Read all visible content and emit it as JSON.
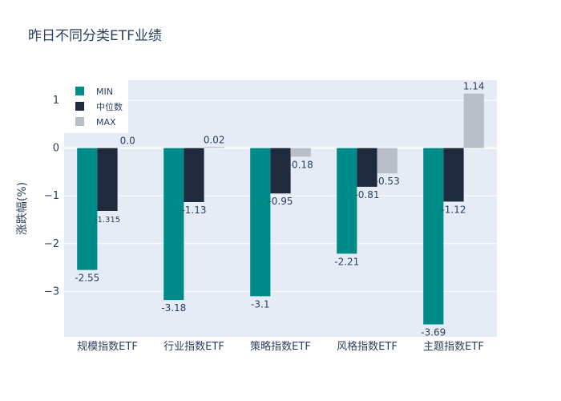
{
  "chart_data": {
    "type": "bar",
    "title": "昨日不同分类ETF业绩",
    "xlabel": "",
    "ylabel": "涨跌幅(%)",
    "ylim": [
      -3.95,
      1.42
    ],
    "yticks": [
      -3,
      -2,
      -1,
      0,
      1
    ],
    "categories": [
      "规模指数ETF",
      "行业指数ETF",
      "策略指数ETF",
      "风格指数ETF",
      "主题指数ETF"
    ],
    "series": [
      {
        "name": "MIN",
        "color": "#008b8b",
        "values": [
          -2.55,
          -3.18,
          -3.1,
          -2.21,
          -3.69
        ],
        "labels": [
          "-2.55",
          "-3.18",
          "-3.1",
          "-2.21",
          "-3.69"
        ]
      },
      {
        "name": "中位数",
        "color": "#1f2a3c",
        "values": [
          -1.315,
          -1.13,
          -0.95,
          -0.81,
          -1.12
        ],
        "labels": [
          "-1.315",
          "-1.13",
          "-0.95",
          "-0.81",
          "-1.12"
        ]
      },
      {
        "name": "MAX",
        "color": "#b8bec7",
        "values": [
          0.0,
          0.02,
          -0.18,
          -0.53,
          1.14
        ],
        "labels": [
          "0.0",
          "0.02",
          "-0.18",
          "-0.53",
          "1.14"
        ]
      }
    ],
    "grid": true,
    "legend": "top-left",
    "colors": {
      "plot_bg": "#e5ecf6",
      "grid": "#ffffff",
      "text": "#2a3f5f"
    }
  }
}
